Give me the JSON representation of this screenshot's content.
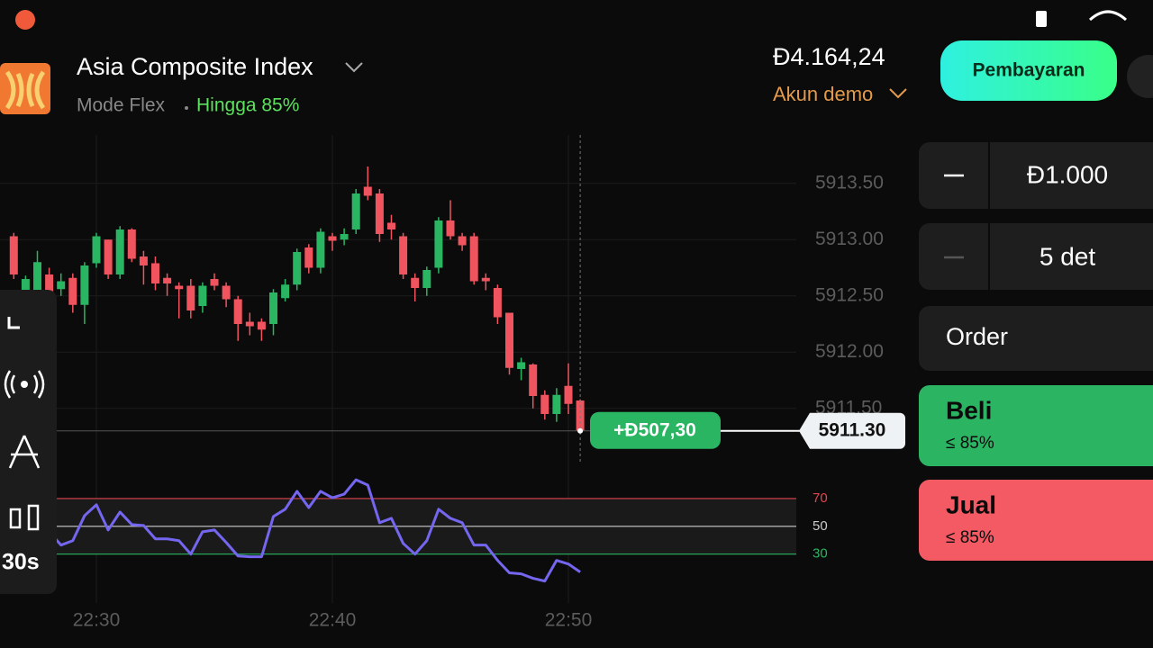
{
  "header": {
    "title": "Asia Composite Index",
    "mode": "Mode Flex",
    "payout": "Hingga 85%",
    "balance": "Đ4.164,24",
    "account": "Akun demo",
    "deposit_button": "Pembayaran"
  },
  "chart_data": [
    {
      "type": "candlestick",
      "categories": [
        null,
        null,
        null,
        null,
        null,
        null,
        null,
        "22:30",
        null,
        null,
        null,
        null,
        null,
        null,
        null,
        null,
        null,
        null,
        null,
        null,
        null,
        null,
        null,
        null,
        null,
        null,
        null,
        "22:40",
        null,
        null,
        null,
        null,
        null,
        null,
        null,
        null,
        null,
        null,
        null,
        null,
        null,
        null,
        null,
        null,
        null,
        null,
        null,
        "22:50",
        null
      ],
      "open": [
        5913.03,
        5912.48,
        5912.48,
        5912.69,
        5912.56,
        5912.66,
        5912.42,
        5912.79,
        5913.0,
        5912.69,
        5913.09,
        5912.85,
        5912.79,
        5912.66,
        5912.59,
        5912.59,
        5912.41,
        5912.65,
        5912.59,
        5912.47,
        5912.27,
        5912.27,
        5912.25,
        5912.48,
        5912.6,
        5912.93,
        5912.75,
        5913.03,
        5913.0,
        5913.09,
        5913.47,
        5913.41,
        5913.15,
        5913.03,
        5912.66,
        5912.57,
        5912.75,
        5913.17,
        5913.03,
        5913.03,
        5912.66,
        5912.57,
        5912.35,
        5911.85,
        5911.89,
        5911.62,
        5911.45,
        5911.7,
        5911.57
      ],
      "high": [
        5913.06,
        5912.68,
        5912.9,
        5912.75,
        5912.7,
        5912.7,
        5912.8,
        5913.06,
        5913.0,
        5913.12,
        5913.1,
        5912.9,
        5912.85,
        5912.7,
        5912.62,
        5912.65,
        5912.62,
        5912.7,
        5912.62,
        5912.5,
        5912.35,
        5912.3,
        5912.56,
        5912.65,
        5912.92,
        5912.96,
        5913.1,
        5913.06,
        5913.1,
        5913.45,
        5913.65,
        5913.45,
        5913.22,
        5913.06,
        5912.7,
        5912.76,
        5913.2,
        5913.35,
        5913.06,
        5913.06,
        5912.7,
        5912.6,
        5912.35,
        5911.95,
        5911.9,
        5911.66,
        5911.68,
        5911.9,
        5911.58
      ],
      "low": [
        5912.65,
        5912.4,
        5912.4,
        5912.4,
        5912.5,
        5912.35,
        5912.25,
        5912.75,
        5912.65,
        5912.65,
        5912.8,
        5912.6,
        5912.55,
        5912.5,
        5912.3,
        5912.3,
        5912.35,
        5912.55,
        5912.4,
        5912.1,
        5912.15,
        5912.1,
        5912.15,
        5912.45,
        5912.55,
        5912.7,
        5912.7,
        5912.9,
        5912.95,
        5913.05,
        5913.35,
        5912.98,
        5913.0,
        5912.65,
        5912.45,
        5912.5,
        5912.7,
        5913.0,
        5912.9,
        5912.6,
        5912.55,
        5912.25,
        5911.8,
        5911.75,
        5911.5,
        5911.4,
        5911.38,
        5911.45,
        5911.3
      ],
      "close": [
        5912.69,
        5912.65,
        5912.8,
        5912.48,
        5912.63,
        5912.42,
        5912.77,
        5913.03,
        5912.69,
        5913.09,
        5912.83,
        5912.77,
        5912.61,
        5912.61,
        5912.56,
        5912.37,
        5912.59,
        5912.59,
        5912.47,
        5912.25,
        5912.23,
        5912.2,
        5912.53,
        5912.6,
        5912.89,
        5912.75,
        5913.07,
        5912.99,
        5913.05,
        5913.41,
        5913.39,
        5913.05,
        5913.09,
        5912.69,
        5912.57,
        5912.73,
        5913.17,
        5913.03,
        5912.95,
        5912.63,
        5912.63,
        5912.31,
        5911.86,
        5911.91,
        5911.61,
        5911.45,
        5911.62,
        5911.54,
        5911.3
      ],
      "up_color": "#2ab562",
      "down_color": "#f0545f",
      "ylim": [
        5910.97,
        5913.93
      ],
      "yticks": [
        {
          "value": 5913.5,
          "label": "5913.50"
        },
        {
          "value": 5913,
          "label": "5913.00"
        },
        {
          "value": 5912.5,
          "label": "5912.50"
        },
        {
          "value": 5912,
          "label": "5912.00"
        },
        {
          "value": 5911.5,
          "label": "5911.50"
        }
      ],
      "grid": true,
      "current_price": {
        "value": 5911.3,
        "label": "5911.30"
      },
      "position_label": "+Đ507,30"
    },
    {
      "type": "line",
      "color": "#7466ee",
      "values": [
        39.7,
        46.1,
        36.5,
        46.1,
        36.5,
        39.7,
        57.7,
        65.5,
        47.4,
        60.3,
        51.3,
        50.6,
        41.0,
        41.0,
        39.7,
        30.0,
        46.1,
        47.4,
        38.4,
        28.7,
        28.1,
        28.1,
        57.1,
        62.3,
        75.2,
        63.5,
        75.2,
        70.6,
        73.2,
        83.5,
        79.7,
        52.6,
        55.8,
        37.7,
        30.0,
        39.7,
        62.3,
        55.8,
        52.6,
        36.5,
        36.5,
        25.5,
        16.5,
        15.8,
        12.6,
        10.6,
        25.5,
        22.9,
        17.1
      ],
      "ylim": [
        0,
        92
      ],
      "yticks": [
        70,
        50,
        30
      ],
      "tick_colors": [
        "#e0474f",
        "#cccccc",
        "#2ab562"
      ]
    }
  ],
  "toolbar": {
    "timeframe": "30s"
  },
  "trade_panel": {
    "amount": "Đ1.000",
    "duration": "5 det",
    "order": "Order",
    "buy": {
      "label": "Beli",
      "payout": "≤ 85%"
    },
    "sell": {
      "label": "Jual",
      "payout": "≤ 85%"
    }
  }
}
